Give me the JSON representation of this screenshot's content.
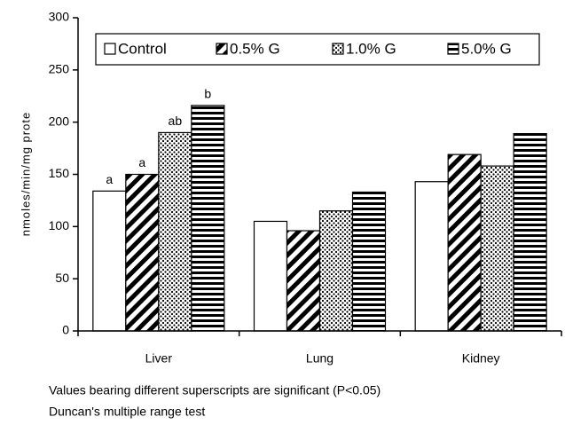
{
  "chart_data": {
    "type": "bar",
    "ylabel": "nmoles/min/mg prote",
    "categories": [
      "Liver",
      "Lung",
      "Kidney"
    ],
    "series": [
      {
        "name": "Control",
        "color": "#000000",
        "pattern": "solid",
        "values": [
          134,
          105,
          143
        ],
        "annotations": [
          "a",
          null,
          null
        ]
      },
      {
        "name": "0.5% G",
        "color": "#000000",
        "pattern": "diagonal",
        "values": [
          150,
          96,
          169
        ],
        "annotations": [
          "a",
          null,
          null
        ]
      },
      {
        "name": "1.0% G",
        "color": "#000000",
        "pattern": "dots",
        "values": [
          190,
          115,
          158
        ],
        "annotations": [
          "ab",
          null,
          null
        ]
      },
      {
        "name": "5.0% G",
        "color": "#000000",
        "pattern": "horizontal",
        "values": [
          216,
          133,
          189
        ],
        "annotations": [
          "b",
          null,
          null
        ]
      }
    ],
    "ylim": [
      0,
      300
    ],
    "yticks": [
      0,
      50,
      100,
      150,
      200,
      250,
      300
    ],
    "legend": "top",
    "notes": [
      "Values bearing different superscripts are significant (P<0.05)",
      "Duncan's multiple range test"
    ]
  }
}
